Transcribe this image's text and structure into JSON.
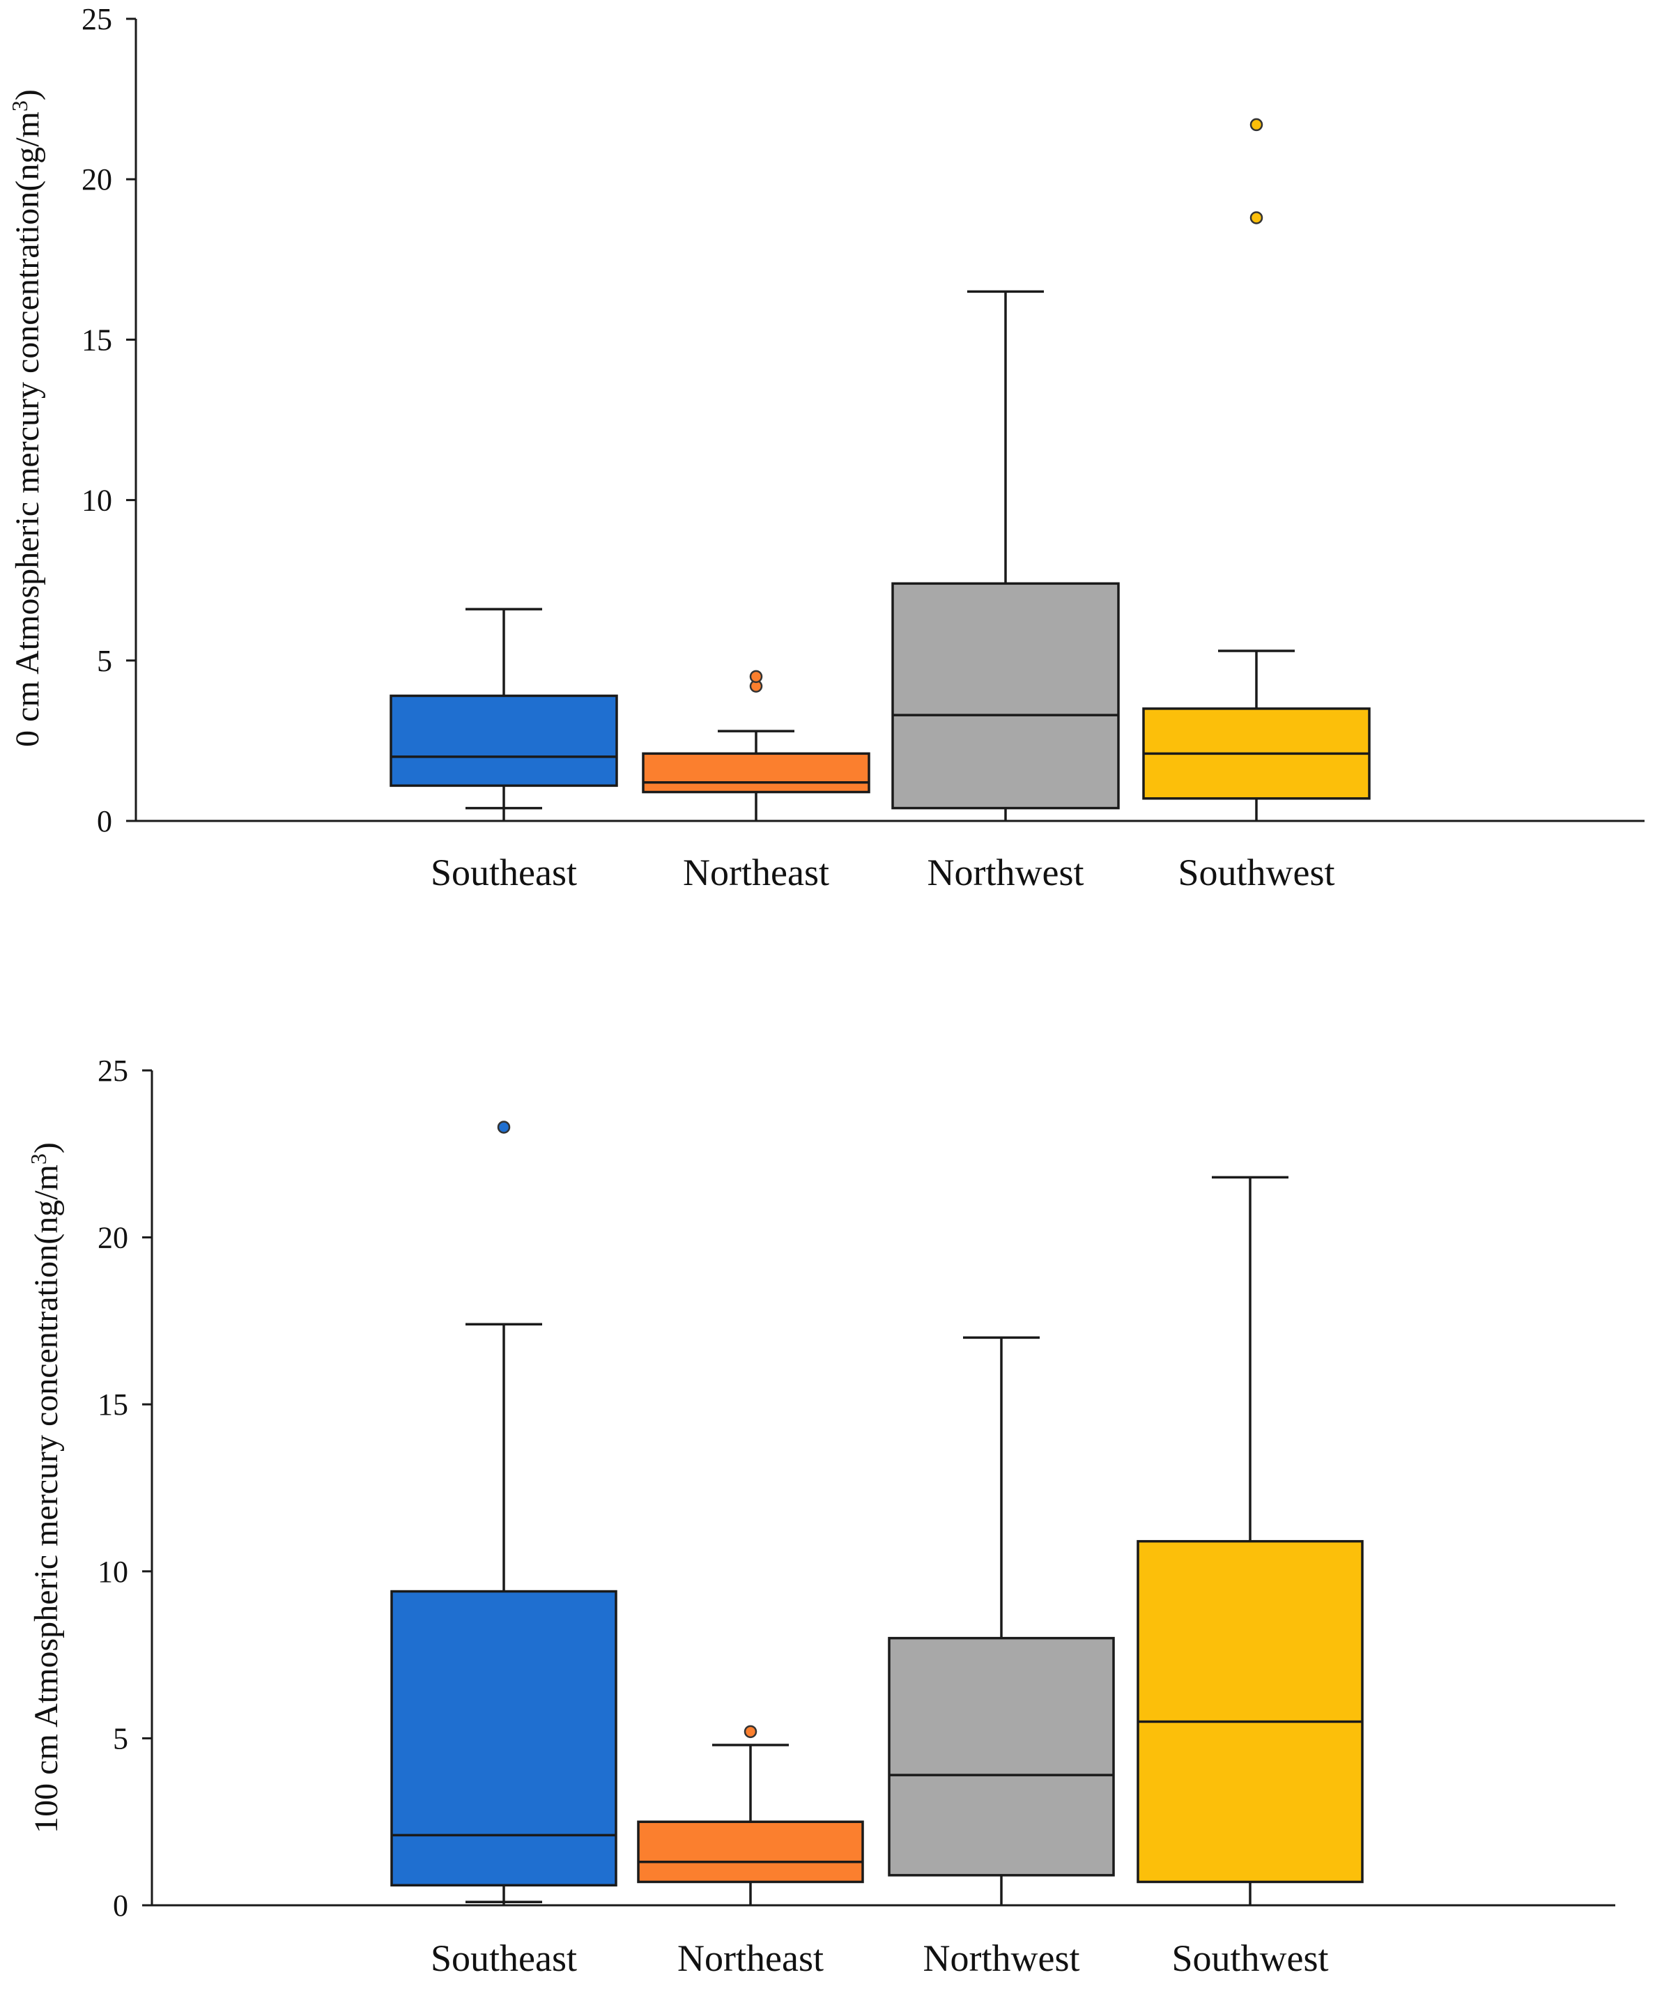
{
  "chart_data": [
    {
      "type": "box",
      "ylabel": "0 cm Atmospheric mercury concentration(ng/m",
      "ylabel_sup": "3",
      "ylabel_suffix": ")",
      "ylim": [
        0,
        25
      ],
      "yticks": [
        0,
        5,
        10,
        15,
        20,
        25
      ],
      "categories": [
        "Southeast",
        "Northeast",
        "Northwest",
        "Southwest"
      ],
      "colors": [
        "#1f6fd0",
        "#fb7f2e",
        "#a8a8a8",
        "#fcbf0a"
      ],
      "series": [
        {
          "name": "Southeast",
          "min": 0.4,
          "q1": 1.1,
          "median": 2.0,
          "q3": 3.9,
          "max": 6.6,
          "outliers": []
        },
        {
          "name": "Northeast",
          "min": 0.9,
          "q1": 0.9,
          "median": 1.2,
          "q3": 2.1,
          "max": 2.8,
          "outliers": [
            4.2,
            4.5
          ]
        },
        {
          "name": "Northwest",
          "min": 0.4,
          "q1": 0.4,
          "median": 3.3,
          "q3": 7.4,
          "max": 16.5,
          "outliers": []
        },
        {
          "name": "Southwest",
          "min": 0.7,
          "q1": 0.7,
          "median": 2.1,
          "q3": 3.5,
          "max": 5.3,
          "outliers": [
            18.8,
            21.7
          ]
        }
      ]
    },
    {
      "type": "box",
      "ylabel": "100 cm Atmospheric mercury concentration(ng/m",
      "ylabel_sup": "3",
      "ylabel_suffix": ")",
      "ylim": [
        0,
        25
      ],
      "yticks": [
        0,
        5,
        10,
        15,
        20,
        25
      ],
      "categories": [
        "Southeast",
        "Northeast",
        "Northwest",
        "Southwest"
      ],
      "colors": [
        "#1f6fd0",
        "#fb7f2e",
        "#a8a8a8",
        "#fcbf0a"
      ],
      "series": [
        {
          "name": "Southeast",
          "min": 0.1,
          "q1": 0.6,
          "median": 2.1,
          "q3": 9.4,
          "max": 17.4,
          "outliers": [
            23.3
          ]
        },
        {
          "name": "Northeast",
          "min": 0.7,
          "q1": 0.7,
          "median": 1.3,
          "q3": 2.5,
          "max": 4.8,
          "outliers": [
            5.2
          ]
        },
        {
          "name": "Northwest",
          "min": 0.9,
          "q1": 0.9,
          "median": 3.9,
          "q3": 8.0,
          "max": 17.0,
          "outliers": []
        },
        {
          "name": "Southwest",
          "min": 0.7,
          "q1": 0.7,
          "median": 5.5,
          "q3": 10.9,
          "max": 21.8,
          "outliers": []
        }
      ]
    }
  ]
}
